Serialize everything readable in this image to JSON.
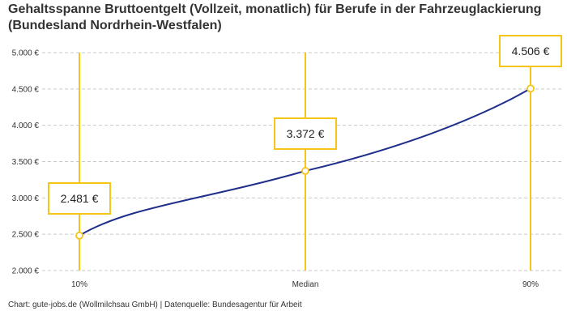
{
  "title": "Gehaltsspanne Bruttoentgelt (Vollzeit, monatlich) für Berufe in der Fahrzeuglackierung (Bundesland Nordrhein-Westfalen)",
  "footer": "Chart: gute-jobs.de (Wollmilchsau GmbH) | Datenquelle: Bundesagentur für Arbeit",
  "colors": {
    "line": "#1f2f8a",
    "accent": "#f5c518",
    "grid": "#c8c8c8"
  },
  "chart_data": {
    "type": "line",
    "title": "Gehaltsspanne Bruttoentgelt (Vollzeit, monatlich) für Berufe in der Fahrzeuglackierung (Bundesland Nordrhein-Westfalen)",
    "categories": [
      "10%",
      "Median",
      "90%"
    ],
    "values": [
      2481,
      3372,
      4506
    ],
    "value_labels": [
      "2.481 €",
      "3.372 €",
      "4.506 €"
    ],
    "ylim": [
      2000,
      5000
    ],
    "yticks": [
      2000,
      2500,
      3000,
      3500,
      4000,
      4500,
      5000
    ],
    "ytick_labels": [
      "2.000 €",
      "2.500 €",
      "3.000 €",
      "3.500 €",
      "4.000 €",
      "4.500 €",
      "5.000 €"
    ],
    "grid": true,
    "xlabel": "",
    "ylabel": ""
  }
}
